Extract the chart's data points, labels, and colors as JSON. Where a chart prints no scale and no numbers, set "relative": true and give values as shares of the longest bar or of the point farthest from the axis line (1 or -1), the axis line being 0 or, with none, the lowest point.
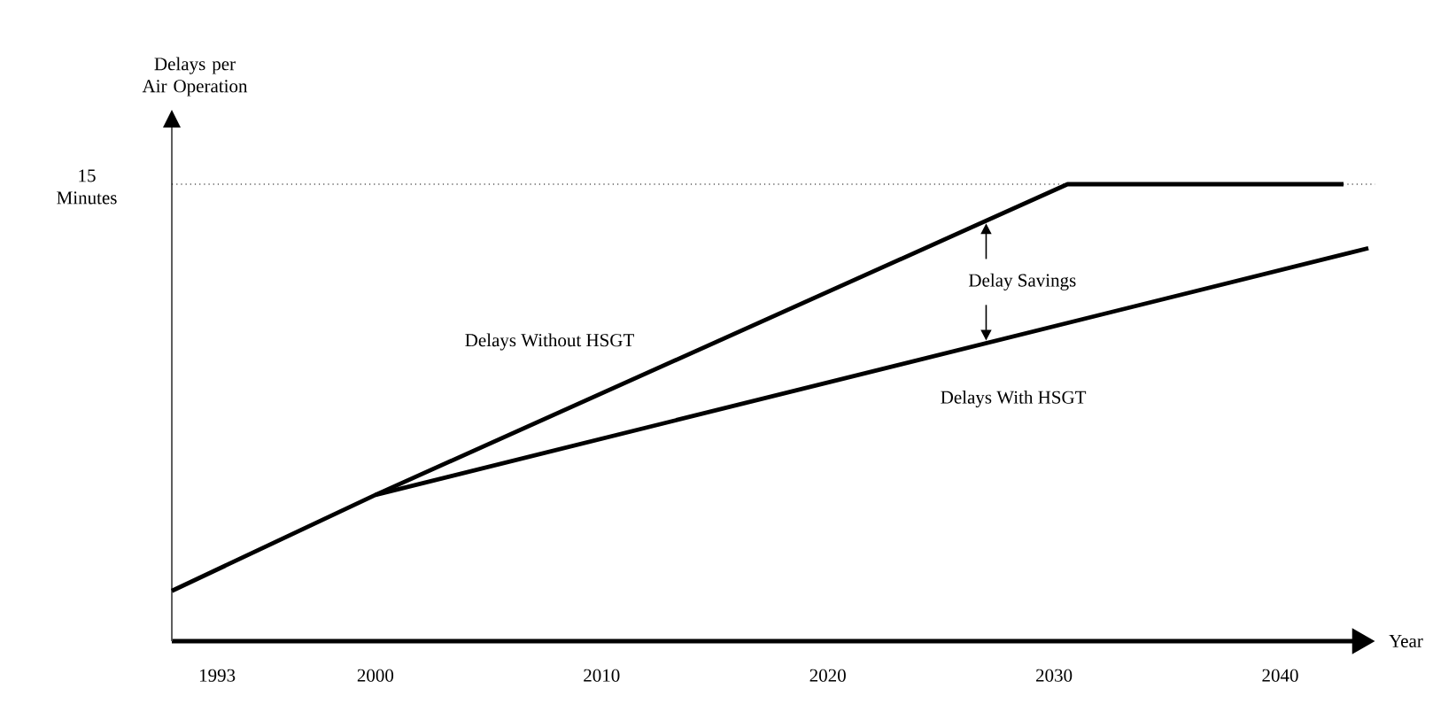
{
  "chart_data": {
    "type": "line",
    "relative": true,
    "xlabel": "Year",
    "ylabel": "Delays per Air Operation",
    "xlim": [
      1991,
      2044.2
    ],
    "xticks": [
      1993,
      2000,
      2010,
      2020,
      2030,
      2040
    ],
    "series": [
      {
        "name": "Delays Without HSGT",
        "color": "#000000",
        "x": [
          1991,
          2000,
          2030.6,
          2042.8
        ],
        "values": [
          0.11,
          0.32,
          1.0,
          1.0
        ]
      },
      {
        "name": "Delays With HSGT",
        "color": "#000000",
        "x": [
          2000,
          2043.9
        ],
        "values": [
          0.32,
          0.86
        ]
      }
    ],
    "ref_lines": [
      {
        "axis": "y",
        "value": 1.0,
        "label": "15 Minutes",
        "line_style": "dotted"
      }
    ],
    "annotations": [
      "Delay Savings"
    ],
    "tick_labels": "x",
    "grid": false,
    "marker": "none",
    "line_style": "solid"
  }
}
